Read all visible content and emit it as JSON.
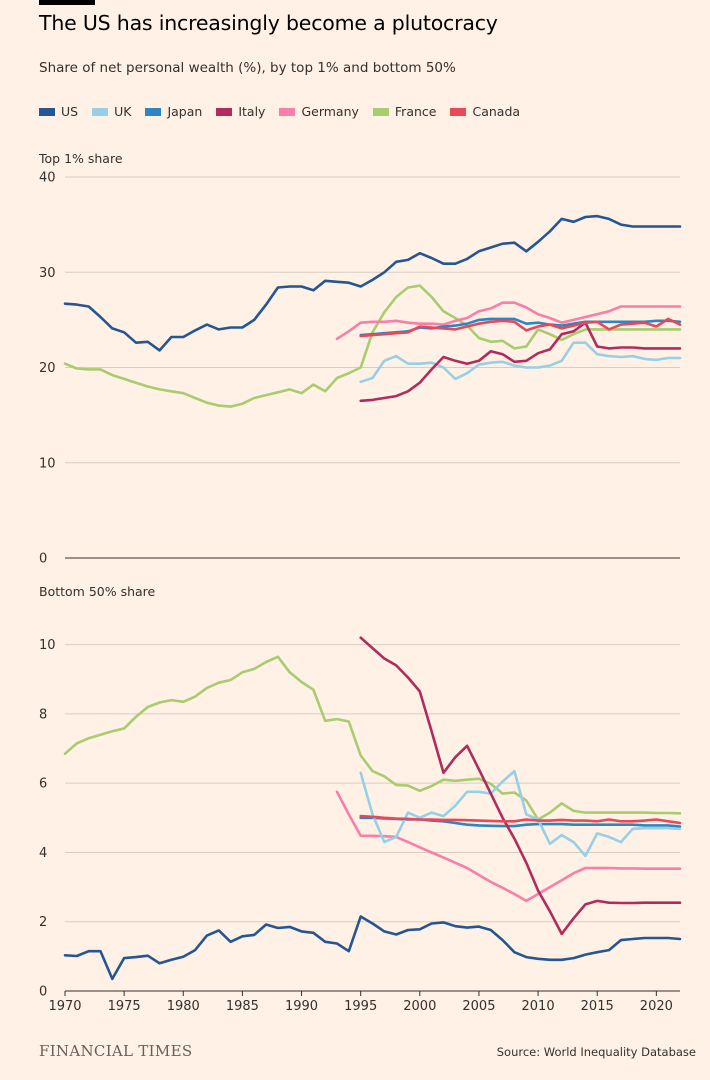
{
  "header": {
    "title": "The US has increasingly become a plutocracy",
    "subtitle": "Share of net personal wealth (%), by top 1% and bottom 50%"
  },
  "footer": {
    "logo": "FINANCIAL TIMES",
    "source": "Source: World Inequality Database"
  },
  "colors": {
    "US": "#255693",
    "UK": "#96CFE6",
    "Japan": "#2C86C4",
    "Italy": "#B02C5E",
    "Germany": "#F87FA8",
    "France": "#A8CC6E",
    "Canada": "#E9485B"
  },
  "legend": [
    "US",
    "UK",
    "Japan",
    "Italy",
    "Germany",
    "France",
    "Canada"
  ],
  "chart_data": [
    {
      "type": "line",
      "title": "Top 1% share",
      "xlim": [
        1970,
        2022
      ],
      "ylim": [
        0,
        40
      ],
      "yticks": [
        0,
        10,
        20,
        30,
        40
      ],
      "xticks": [],
      "grid": true,
      "legend_position": "top",
      "series": [
        {
          "name": "US",
          "x_start": 1970,
          "values": [
            26.7,
            26.6,
            26.4,
            25.3,
            24.1,
            23.7,
            22.6,
            22.7,
            21.8,
            23.2,
            23.2,
            23.9,
            24.5,
            24.0,
            24.2,
            24.2,
            25.0,
            26.6,
            28.4,
            28.5,
            28.5,
            28.1,
            29.1,
            29.0,
            28.9,
            28.5,
            29.2,
            30.0,
            31.1,
            31.3,
            32.0,
            31.5,
            30.9,
            30.9,
            31.4,
            32.2,
            32.6,
            33.0,
            33.1,
            32.2,
            33.2,
            34.3,
            35.6,
            35.3,
            35.8,
            35.9,
            35.6,
            35.0,
            34.8,
            34.8,
            34.8,
            34.8,
            34.8
          ]
        },
        {
          "name": "UK",
          "x_start": 1995,
          "values": [
            18.5,
            18.9,
            20.7,
            21.2,
            20.4,
            20.4,
            20.5,
            20.0,
            18.8,
            19.4,
            20.3,
            20.5,
            20.6,
            20.2,
            20.0,
            20.0,
            20.2,
            20.7,
            22.6,
            22.6,
            21.4,
            21.2,
            21.1,
            21.2,
            20.9,
            20.8,
            21.0,
            21.0
          ]
        },
        {
          "name": "Japan",
          "x_start": 1995,
          "values": [
            23.4,
            23.5,
            23.6,
            23.7,
            23.8,
            24.2,
            24.1,
            24.3,
            24.4,
            24.6,
            25.0,
            25.1,
            25.1,
            25.1,
            24.6,
            24.7,
            24.5,
            24.4,
            24.6,
            24.8,
            24.8,
            24.8,
            24.8,
            24.8,
            24.8,
            24.9,
            24.9,
            24.8
          ]
        },
        {
          "name": "Italy",
          "x_start": 1995,
          "values": [
            16.5,
            16.6,
            16.8,
            17.0,
            17.5,
            18.4,
            19.8,
            21.1,
            20.7,
            20.4,
            20.7,
            21.7,
            21.4,
            20.6,
            20.7,
            21.5,
            21.9,
            23.5,
            23.8,
            24.7,
            22.2,
            22.0,
            22.1,
            22.1,
            22.0,
            22.0,
            22.0,
            22.0
          ]
        },
        {
          "name": "Germany",
          "x_start": 1993,
          "values": [
            23.0,
            23.8,
            24.7,
            24.8,
            24.8,
            24.9,
            24.7,
            24.6,
            24.6,
            24.5,
            24.9,
            25.2,
            25.9,
            26.2,
            26.8,
            26.8,
            26.3,
            25.6,
            25.2,
            24.7,
            25.0,
            25.3,
            25.6,
            25.9,
            26.4,
            26.4,
            26.4,
            26.4,
            26.4,
            26.4
          ]
        },
        {
          "name": "France",
          "x_start": 1970,
          "values": [
            20.4,
            19.9,
            19.8,
            19.8,
            19.2,
            18.8,
            18.4,
            18.0,
            17.7,
            17.5,
            17.3,
            16.8,
            16.3,
            16.0,
            15.9,
            16.2,
            16.8,
            17.1,
            17.4,
            17.7,
            17.3,
            18.2,
            17.5,
            18.9,
            19.4,
            20.0,
            23.7,
            25.8,
            27.4,
            28.4,
            28.6,
            27.4,
            25.9,
            25.2,
            24.4,
            23.1,
            22.7,
            22.8,
            22.0,
            22.2,
            24.0,
            23.5,
            22.9,
            23.5,
            24.0,
            24.0,
            24.0,
            24.0,
            24.0,
            24.0,
            24.0,
            24.0,
            24.0
          ]
        },
        {
          "name": "Canada",
          "x_start": 1995,
          "values": [
            23.3,
            23.4,
            23.5,
            23.6,
            23.7,
            24.3,
            24.2,
            24.1,
            24.0,
            24.3,
            24.6,
            24.8,
            24.9,
            24.8,
            23.9,
            24.3,
            24.5,
            24.1,
            24.4,
            24.7,
            24.8,
            24.0,
            24.5,
            24.6,
            24.7,
            24.3,
            25.1,
            24.5
          ]
        }
      ]
    },
    {
      "type": "line",
      "title": "Bottom 50% share",
      "xlim": [
        1970,
        2022
      ],
      "ylim": [
        0,
        11
      ],
      "yticks": [
        0,
        2,
        4,
        6,
        8,
        10
      ],
      "xticks": [
        1970,
        1975,
        1980,
        1985,
        1990,
        1995,
        2000,
        2005,
        2010,
        2015,
        2020
      ],
      "grid": true,
      "series": [
        {
          "name": "US",
          "x_start": 1970,
          "values": [
            1.03,
            1.01,
            1.15,
            1.15,
            0.35,
            0.95,
            0.98,
            1.02,
            0.8,
            0.9,
            0.99,
            1.18,
            1.6,
            1.75,
            1.42,
            1.58,
            1.62,
            1.92,
            1.82,
            1.85,
            1.72,
            1.68,
            1.42,
            1.37,
            1.15,
            2.15,
            1.95,
            1.72,
            1.63,
            1.76,
            1.78,
            1.95,
            1.98,
            1.87,
            1.83,
            1.86,
            1.76,
            1.47,
            1.12,
            0.98,
            0.93,
            0.9,
            0.9,
            0.95,
            1.05,
            1.12,
            1.18,
            1.47,
            1.5,
            1.53,
            1.53,
            1.53,
            1.5
          ]
        },
        {
          "name": "UK",
          "x_start": 1995,
          "values": [
            6.3,
            5.1,
            4.3,
            4.45,
            5.15,
            5.0,
            5.15,
            5.05,
            5.35,
            5.75,
            5.75,
            5.7,
            6.05,
            6.35,
            5.1,
            4.95,
            4.25,
            4.5,
            4.3,
            3.9,
            4.55,
            4.45,
            4.3,
            4.68,
            4.7,
            4.7,
            4.7,
            4.68
          ]
        },
        {
          "name": "Japan",
          "x_start": 1995,
          "values": [
            5.0,
            5.0,
            4.98,
            4.97,
            4.95,
            4.95,
            4.92,
            4.9,
            4.85,
            4.8,
            4.78,
            4.77,
            4.76,
            4.76,
            4.8,
            4.82,
            4.82,
            4.82,
            4.8,
            4.8,
            4.8,
            4.8,
            4.8,
            4.8,
            4.78,
            4.78,
            4.78,
            4.75
          ]
        },
        {
          "name": "Italy",
          "x_start": 1995,
          "values": [
            10.2,
            9.9,
            9.6,
            9.4,
            9.05,
            8.65,
            7.5,
            6.3,
            6.75,
            7.08,
            6.4,
            5.7,
            5.0,
            4.4,
            3.7,
            2.9,
            2.3,
            1.65,
            2.1,
            2.5,
            2.6,
            2.55,
            2.54,
            2.54,
            2.55,
            2.55,
            2.55,
            2.55
          ]
        },
        {
          "name": "Germany",
          "x_start": 1993,
          "values": [
            5.75,
            5.1,
            4.48,
            4.48,
            4.47,
            4.45,
            4.3,
            4.15,
            4.0,
            3.85,
            3.7,
            3.55,
            3.35,
            3.15,
            2.98,
            2.8,
            2.6,
            2.8,
            3.0,
            3.2,
            3.4,
            3.55,
            3.55,
            3.55,
            3.54,
            3.54,
            3.53,
            3.53,
            3.53,
            3.53
          ]
        },
        {
          "name": "France",
          "x_start": 1970,
          "values": [
            6.85,
            7.15,
            7.3,
            7.4,
            7.5,
            7.58,
            7.92,
            8.2,
            8.33,
            8.4,
            8.35,
            8.5,
            8.75,
            8.9,
            8.98,
            9.2,
            9.3,
            9.5,
            9.65,
            9.2,
            8.92,
            8.7,
            7.8,
            7.85,
            7.78,
            6.8,
            6.35,
            6.2,
            5.95,
            5.93,
            5.78,
            5.92,
            6.1,
            6.07,
            6.1,
            6.13,
            5.98,
            5.7,
            5.73,
            5.5,
            4.95,
            5.15,
            5.42,
            5.2,
            5.15,
            5.15,
            5.15,
            5.15,
            5.15,
            5.15,
            5.14,
            5.14,
            5.13
          ]
        },
        {
          "name": "Canada",
          "x_start": 1995,
          "values": [
            5.05,
            5.03,
            5.0,
            4.98,
            4.97,
            4.95,
            4.95,
            4.94,
            4.94,
            4.93,
            4.92,
            4.91,
            4.9,
            4.9,
            4.95,
            4.92,
            4.92,
            4.94,
            4.92,
            4.92,
            4.9,
            4.95,
            4.9,
            4.9,
            4.92,
            4.95,
            4.9,
            4.85
          ]
        }
      ]
    }
  ]
}
